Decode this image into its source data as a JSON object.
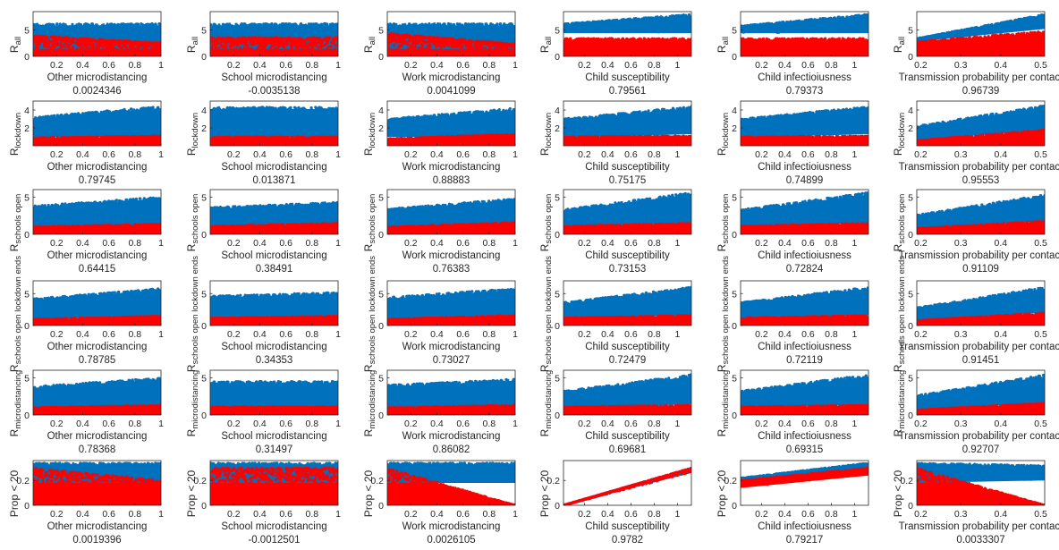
{
  "colors": {
    "upper": "#0072BD",
    "lower": "#FF0000",
    "axis": "#262626",
    "background": "#ffffff"
  },
  "columns": [
    {
      "xlabel": "Other microdistancing",
      "xlim": [
        0.02,
        1.0
      ],
      "xticks": [
        "0.2",
        "0.4",
        "0.6",
        "0.8",
        "1"
      ]
    },
    {
      "xlabel": "School microdistancing",
      "xlim": [
        0.02,
        1.0
      ],
      "xticks": [
        "0.2",
        "0.4",
        "0.6",
        "0.8",
        "1"
      ]
    },
    {
      "xlabel": "Work microdistancing",
      "xlim": [
        0.02,
        1.0
      ],
      "xticks": [
        "0.2",
        "0.4",
        "0.6",
        "0.8",
        "1"
      ]
    },
    {
      "xlabel": "Child susceptibility",
      "xlim": [
        0.02,
        1.12
      ],
      "xticks": [
        "0.2",
        "0.4",
        "0.6",
        "0.8",
        "1"
      ]
    },
    {
      "xlabel": "Child infectioiusness",
      "xlim": [
        0.02,
        1.12
      ],
      "xticks": [
        "0.2",
        "0.4",
        "0.6",
        "0.8",
        "1"
      ]
    },
    {
      "xlabel": "Transmission probability per contact",
      "xlim": [
        0.19,
        0.51
      ],
      "xticks": [
        "0.2",
        "0.3",
        "0.4",
        "0.5"
      ]
    }
  ],
  "rows": [
    {
      "ylabel_main": "R",
      "ylabel_sub": "all",
      "ylim": [
        0,
        8.5
      ],
      "yticks": [
        "0",
        "5"
      ]
    },
    {
      "ylabel_main": "R",
      "ylabel_sub": "lockdown",
      "ylim": [
        0,
        5
      ],
      "yticks": [
        "2",
        "4"
      ]
    },
    {
      "ylabel_main": "R",
      "ylabel_sub": "schools open",
      "ylim": [
        0,
        6
      ],
      "yticks": [
        "0",
        "5"
      ]
    },
    {
      "ylabel_main": "R",
      "ylabel_sub": "schools open lockdown ends",
      "ylim": [
        0,
        7
      ],
      "yticks": [
        "0",
        "5"
      ]
    },
    {
      "ylabel_main": "R",
      "ylabel_sub": "microdistancing",
      "ylim": [
        0,
        6
      ],
      "yticks": [
        "0",
        "5"
      ]
    },
    {
      "ylabel_main": "Prop < 20",
      "ylabel_sub": "",
      "ylim": [
        0,
        0.36
      ],
      "yticks": [
        "0",
        "0.2"
      ]
    }
  ],
  "chart_data": {
    "type": "scatter",
    "description_grid": "6 rows (outputs) x 6 columns (inputs); two point clouds per panel: upper range (blue) and lower range (red)",
    "correlations": [
      [
        "0.0024346",
        "-0.0035138",
        "0.0041099",
        "0.79561",
        "0.79373",
        "0.96739"
      ],
      [
        "0.79745",
        "0.013871",
        "0.88883",
        "0.75175",
        "0.74899",
        "0.95553"
      ],
      [
        "0.64415",
        "0.38491",
        "0.76383",
        "0.73153",
        "0.72824",
        "0.91109"
      ],
      [
        "0.78785",
        "0.34353",
        "0.73027",
        "0.72479",
        "0.72119",
        "0.91451"
      ],
      [
        "0.78368",
        "0.31497",
        "0.86082",
        "0.69681",
        "0.69315",
        "0.92707"
      ],
      [
        "0.0019396",
        "-0.0012501",
        "0.0026105",
        "0.9782",
        "0.79217",
        "0.0033307"
      ]
    ],
    "series": [
      {
        "color": "#0072BD",
        "values": [
          [
            [
              1.4,
              6.2,
              1.4,
              6.2
            ],
            [
              1.4,
              6.2,
              1.4,
              6.2
            ],
            [
              1.4,
              6.2,
              1.4,
              6.2
            ],
            [
              4.4,
              6.2,
              4.4,
              8.0
            ],
            [
              4.4,
              5.8,
              4.4,
              8.0
            ],
            [
              2.8,
              3.4,
              5.2,
              8.0
            ]
          ],
          [
            [
              1.0,
              3.2,
              1.0,
              4.4
            ],
            [
              1.0,
              4.3,
              1.0,
              4.3
            ],
            [
              1.0,
              3.0,
              1.0,
              4.2
            ],
            [
              0.9,
              3.0,
              1.3,
              4.4
            ],
            [
              0.9,
              3.0,
              1.3,
              4.4
            ],
            [
              0.6,
              2.2,
              1.8,
              4.5
            ]
          ],
          [
            [
              0.9,
              3.8,
              1.2,
              5.0
            ],
            [
              0.9,
              3.6,
              1.2,
              4.3
            ],
            [
              0.9,
              3.4,
              1.2,
              4.8
            ],
            [
              1.0,
              3.3,
              1.5,
              5.6
            ],
            [
              1.0,
              3.3,
              1.5,
              5.6
            ],
            [
              0.7,
              2.6,
              1.8,
              5.3
            ]
          ],
          [
            [
              1.0,
              4.2,
              1.4,
              5.8
            ],
            [
              1.0,
              4.6,
              1.4,
              5.2
            ],
            [
              1.0,
              4.4,
              1.4,
              5.8
            ],
            [
              1.0,
              3.6,
              1.6,
              6.0
            ],
            [
              1.0,
              3.6,
              1.6,
              6.0
            ],
            [
              0.8,
              2.8,
              2.0,
              6.0
            ]
          ],
          [
            [
              1.0,
              3.8,
              1.2,
              5.0
            ],
            [
              1.0,
              4.5,
              1.0,
              4.5
            ],
            [
              1.0,
              4.0,
              1.2,
              4.8
            ],
            [
              1.0,
              3.2,
              1.4,
              5.4
            ],
            [
              1.0,
              3.2,
              1.4,
              5.4
            ],
            [
              0.7,
              2.6,
              1.6,
              5.4
            ]
          ],
          [
            [
              0.18,
              0.34,
              0.18,
              0.34
            ],
            [
              0.18,
              0.34,
              0.18,
              0.34
            ],
            [
              0.18,
              0.34,
              0.18,
              0.34
            ],
            [
              0.0,
              0.0,
              0.26,
              0.3
            ],
            [
              0.18,
              0.22,
              0.3,
              0.34
            ],
            [
              0.18,
              0.34,
              0.2,
              0.32
            ]
          ]
        ]
      },
      {
        "color": "#FF0000",
        "values": [
          [
            [
              0,
              4.0,
              0,
              2.6
            ],
            [
              0,
              3.6,
              0,
              3.6
            ],
            [
              0,
              4.4,
              0,
              2.4
            ],
            [
              0,
              3.4,
              0,
              3.4
            ],
            [
              0,
              3.4,
              0,
              3.4
            ],
            [
              0,
              2.8,
              0,
              4.8
            ]
          ],
          [
            [
              0,
              0.9,
              0,
              1.1
            ],
            [
              0,
              1.0,
              0,
              1.0
            ],
            [
              0,
              0.8,
              0,
              1.3
            ],
            [
              0,
              1.0,
              0,
              1.1
            ],
            [
              0,
              1.0,
              0,
              1.1
            ],
            [
              0,
              0.6,
              0,
              1.8
            ]
          ],
          [
            [
              0,
              1.0,
              0,
              1.4
            ],
            [
              0,
              1.1,
              0,
              1.5
            ],
            [
              0,
              1.0,
              0,
              1.6
            ],
            [
              0,
              1.1,
              0,
              1.5
            ],
            [
              0,
              1.1,
              0,
              1.5
            ],
            [
              0,
              0.8,
              0,
              1.8
            ]
          ],
          [
            [
              0,
              1.0,
              0,
              1.5
            ],
            [
              0,
              1.2,
              0,
              1.5
            ],
            [
              0,
              1.0,
              0,
              1.6
            ],
            [
              0,
              1.2,
              0,
              1.6
            ],
            [
              0,
              1.2,
              0,
              1.6
            ],
            [
              0,
              0.8,
              0,
              2.0
            ]
          ],
          [
            [
              0,
              1.0,
              0,
              1.3
            ],
            [
              0,
              1.1,
              0,
              1.1
            ],
            [
              0,
              1.0,
              0,
              1.3
            ],
            [
              0,
              1.1,
              0,
              1.3
            ],
            [
              0,
              1.1,
              0,
              1.3
            ],
            [
              0,
              0.7,
              0,
              1.6
            ]
          ],
          [
            [
              0,
              0.3,
              0,
              0.2
            ],
            [
              0,
              0.3,
              0,
              0.3
            ],
            [
              0,
              0.3,
              0,
              0.0
            ],
            [
              0,
              0.0,
              0.26,
              0.3
            ],
            [
              0.14,
              0.2,
              0.24,
              0.3
            ],
            [
              0,
              0.3,
              0,
              0.0
            ]
          ]
        ]
      }
    ],
    "series_note": "values[row][col] = [y_low_at_xmin, y_high_at_xmin, y_low_at_xmax, y_high_at_xmax] envelope of each point cloud in data units"
  }
}
